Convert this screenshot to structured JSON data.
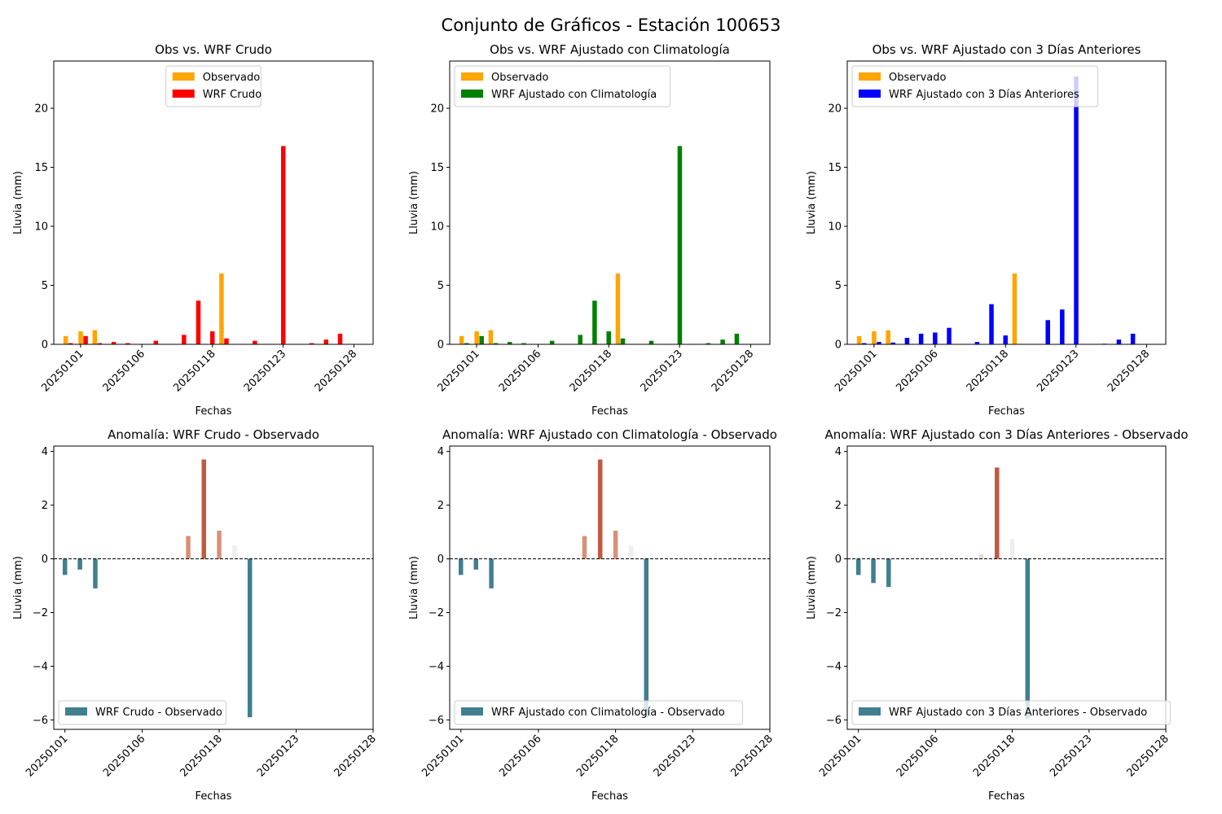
{
  "suptitle": "Conjunto de Gráficos - Estación 100653",
  "colors": {
    "observado": "#ffa500",
    "wrf_crudo": "#ff0000",
    "wrf_clim": "#008000",
    "wrf_3dias": "#0000ff",
    "anom_neg": "#3f7f8f",
    "anom_pos_strong": "#c25a40",
    "anom_pos_medium": "#d89078",
    "anom_pos_light": "#f0d8cf",
    "anom_pos_faint": "#efefef"
  },
  "x_tick_labels": [
    "20250101",
    "20250106",
    "20250118",
    "20250123",
    "20250128"
  ],
  "chart_data": [
    {
      "type": "bar",
      "title": "Obs vs. WRF Crudo",
      "xlabel": "Fechas",
      "ylabel": "Lluvia (mm)",
      "ylim": [
        0,
        24
      ],
      "yticks": [
        0,
        5,
        10,
        15,
        20
      ],
      "x_ticks": [
        "20250101",
        "20250106",
        "20250118",
        "20250123",
        "20250128"
      ],
      "legend_position": "upper center",
      "series": [
        {
          "name": "Observado",
          "x": [
            "20250101",
            "20250102",
            "20250103",
            "20250104",
            "20250105",
            "20250106",
            "20250108",
            "20250109",
            "20250117",
            "20250118",
            "20250119",
            "20250120",
            "20250121",
            "20250122",
            "20250123",
            "20250124",
            "20250125",
            "20250126",
            "20250127",
            "20250128"
          ],
          "values": [
            0.7,
            1.1,
            1.2,
            0.0,
            0.0,
            0.0,
            0.0,
            0.0,
            0.0,
            0.0,
            0.0,
            6.0,
            0.0,
            0.0,
            0.0,
            0.0,
            0.0,
            0.0,
            0.0,
            0.0
          ]
        },
        {
          "name": "WRF Crudo",
          "x": [
            "20250101",
            "20250102",
            "20250103",
            "20250104",
            "20250105",
            "20250106",
            "20250108",
            "20250109",
            "20250117",
            "20250118",
            "20250119",
            "20250120",
            "20250121",
            "20250122",
            "20250123",
            "20250124",
            "20250125",
            "20250126",
            "20250127",
            "20250128"
          ],
          "values": [
            0.1,
            0.7,
            0.1,
            0.2,
            0.1,
            0.0,
            0.3,
            0.0,
            0.8,
            3.7,
            1.1,
            0.5,
            0.0,
            0.3,
            0.0,
            16.8,
            0.0,
            0.1,
            0.4,
            0.9
          ]
        }
      ]
    },
    {
      "type": "bar",
      "title": "Obs vs. WRF Ajustado con Climatología",
      "xlabel": "Fechas",
      "ylabel": "Lluvia (mm)",
      "ylim": [
        0,
        24
      ],
      "yticks": [
        0,
        5,
        10,
        15,
        20
      ],
      "x_ticks": [
        "20250101",
        "20250106",
        "20250118",
        "20250123",
        "20250128"
      ],
      "legend_position": "upper left",
      "series": [
        {
          "name": "Observado",
          "x": [
            "20250101",
            "20250102",
            "20250103",
            "20250104",
            "20250105",
            "20250106",
            "20250108",
            "20250109",
            "20250117",
            "20250118",
            "20250119",
            "20250120",
            "20250121",
            "20250122",
            "20250123",
            "20250124",
            "20250125",
            "20250126",
            "20250127",
            "20250128"
          ],
          "values": [
            0.7,
            1.1,
            1.2,
            0.0,
            0.0,
            0.0,
            0.0,
            0.0,
            0.0,
            0.0,
            0.0,
            6.0,
            0.0,
            0.0,
            0.0,
            0.0,
            0.0,
            0.0,
            0.0,
            0.0
          ]
        },
        {
          "name": "WRF Ajustado con Climatología",
          "x": [
            "20250101",
            "20250102",
            "20250103",
            "20250104",
            "20250105",
            "20250106",
            "20250108",
            "20250109",
            "20250117",
            "20250118",
            "20250119",
            "20250120",
            "20250121",
            "20250122",
            "20250123",
            "20250124",
            "20250125",
            "20250126",
            "20250127",
            "20250128"
          ],
          "values": [
            0.1,
            0.7,
            0.1,
            0.2,
            0.1,
            0.0,
            0.3,
            0.0,
            0.8,
            3.7,
            1.1,
            0.5,
            0.0,
            0.3,
            0.0,
            16.8,
            0.0,
            0.1,
            0.4,
            0.9
          ]
        }
      ]
    },
    {
      "type": "bar",
      "title": "Obs vs. WRF Ajustado con 3 Días Anteriores",
      "xlabel": "Fechas",
      "ylabel": "Lluvia (mm)",
      "ylim": [
        0,
        24
      ],
      "yticks": [
        0,
        5,
        10,
        15,
        20
      ],
      "x_ticks": [
        "20250101",
        "20250106",
        "20250118",
        "20250123",
        "20250128"
      ],
      "legend_position": "upper left",
      "series": [
        {
          "name": "Observado",
          "x": [
            "20250101",
            "20250102",
            "20250103",
            "20250104",
            "20250105",
            "20250106",
            "20250108",
            "20250109",
            "20250117",
            "20250118",
            "20250119",
            "20250120",
            "20250121",
            "20250122",
            "20250123",
            "20250124",
            "20250125",
            "20250126",
            "20250127",
            "20250128"
          ],
          "values": [
            0.7,
            1.1,
            1.2,
            0.0,
            0.0,
            0.0,
            0.0,
            0.0,
            0.0,
            0.0,
            0.0,
            6.0,
            0.0,
            0.0,
            0.0,
            0.0,
            0.0,
            0.0,
            0.0,
            0.0
          ]
        },
        {
          "name": "WRF Ajustado con 3 Días Anteriores",
          "x": [
            "20250101",
            "20250102",
            "20250103",
            "20250104",
            "20250105",
            "20250106",
            "20250108",
            "20250109",
            "20250117",
            "20250118",
            "20250119",
            "20250120",
            "20250121",
            "20250122",
            "20250123",
            "20250124",
            "20250125",
            "20250126",
            "20250127",
            "20250128"
          ],
          "values": [
            0.1,
            0.2,
            0.15,
            0.55,
            0.9,
            1.0,
            1.4,
            0.0,
            0.2,
            3.4,
            0.75,
            0.0,
            0.0,
            2.05,
            2.95,
            22.7,
            0.0,
            0.05,
            0.4,
            0.9
          ]
        }
      ]
    },
    {
      "type": "bar",
      "title": "Anomalía: WRF Crudo - Observado",
      "xlabel": "Fechas",
      "ylabel": "Lluvia (mm)",
      "ylim": [
        -6.35,
        4.2
      ],
      "yticks": [
        -6,
        -4,
        -2,
        0,
        2,
        4
      ],
      "x_ticks": [
        "20250101",
        "20250106",
        "20250118",
        "20250123",
        "20250128"
      ],
      "legend_position": "lower left",
      "series": [
        {
          "name": "WRF Crudo - Observado",
          "x": [
            "20250101",
            "20250102",
            "20250103",
            "20250104",
            "20250105",
            "20250106",
            "20250108",
            "20250109",
            "20250117",
            "20250118",
            "20250119",
            "20250120",
            "20250121",
            "20250122",
            "20250123",
            "20250124",
            "20250125",
            "20250126",
            "20250127",
            "20250128"
          ],
          "values": [
            -0.6,
            -0.4,
            -1.1,
            0.0,
            0.0,
            0.0,
            0.0,
            0.03,
            0.85,
            3.7,
            1.05,
            0.5,
            -5.9,
            0.0,
            0.0,
            0.0,
            0.0,
            0.0,
            0.0,
            0.0
          ]
        }
      ]
    },
    {
      "type": "bar",
      "title": "Anomalía: WRF Ajustado con Climatología - Observado",
      "xlabel": "Fechas",
      "ylabel": "Lluvia (mm)",
      "ylim": [
        -6.35,
        4.2
      ],
      "yticks": [
        -6,
        -4,
        -2,
        0,
        2,
        4
      ],
      "x_ticks": [
        "20250101",
        "20250106",
        "20250118",
        "20250123",
        "20250128"
      ],
      "legend_position": "lower left",
      "series": [
        {
          "name": "WRF Ajustado con Climatología - Observado",
          "x": [
            "20250101",
            "20250102",
            "20250103",
            "20250104",
            "20250105",
            "20250106",
            "20250108",
            "20250109",
            "20250117",
            "20250118",
            "20250119",
            "20250120",
            "20250121",
            "20250122",
            "20250123",
            "20250124",
            "20250125",
            "20250126",
            "20250127",
            "20250128"
          ],
          "values": [
            -0.6,
            -0.4,
            -1.1,
            0.0,
            0.0,
            0.0,
            0.0,
            0.03,
            0.85,
            3.7,
            1.05,
            0.5,
            -5.9,
            0.0,
            0.0,
            0.0,
            0.0,
            0.0,
            0.0,
            0.0
          ]
        }
      ]
    },
    {
      "type": "bar",
      "title": "Anomalía: WRF Ajustado con 3 Días Anteriores - Observado",
      "xlabel": "Fechas",
      "ylabel": "Lluvia (mm)",
      "ylim": [
        -6.35,
        4.2
      ],
      "yticks": [
        -6,
        -4,
        -2,
        0,
        2,
        4
      ],
      "x_ticks": [
        "20250101",
        "20250106",
        "20250118",
        "20250123",
        "20250128"
      ],
      "legend_position": "lower left",
      "series": [
        {
          "name": "WRF Ajustado con 3 Días Anteriores - Observado",
          "x": [
            "20250101",
            "20250102",
            "20250103",
            "20250104",
            "20250105",
            "20250106",
            "20250108",
            "20250109",
            "20250117",
            "20250118",
            "20250119",
            "20250120",
            "20250121",
            "20250122",
            "20250123",
            "20250124",
            "20250125",
            "20250126",
            "20250127",
            "20250128"
          ],
          "values": [
            -0.6,
            -0.9,
            -1.05,
            0.0,
            0.0,
            0.0,
            0.0,
            0.0,
            0.17,
            3.4,
            0.75,
            -5.95,
            0.0,
            0.0,
            0.0,
            0.0,
            0.0,
            0.0,
            0.0,
            0.0
          ]
        }
      ]
    }
  ]
}
